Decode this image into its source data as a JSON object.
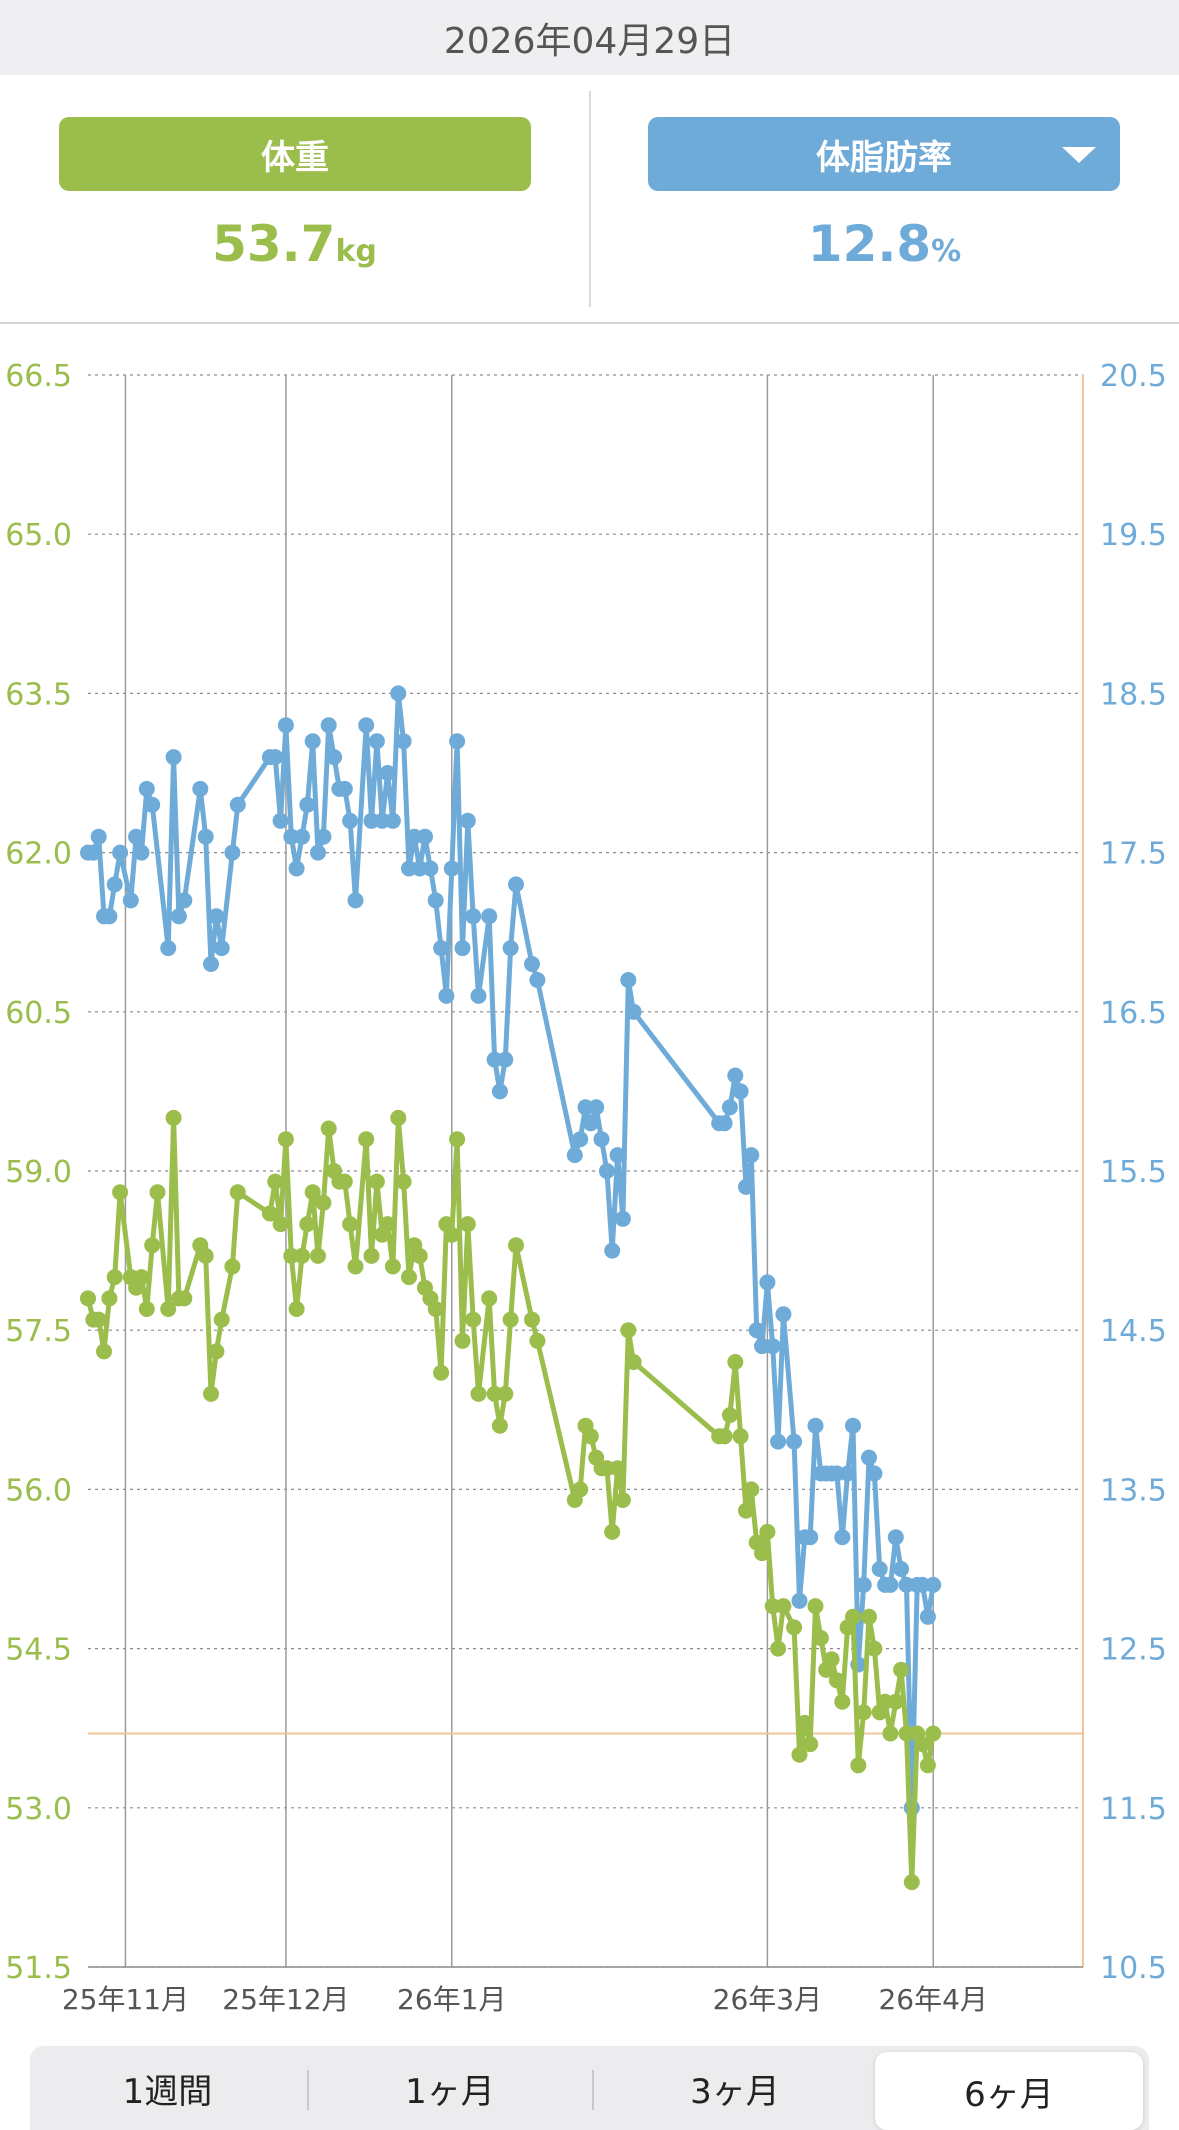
{
  "header": {
    "date": "2026年04月29日"
  },
  "summary": {
    "weight": {
      "label": "体重",
      "value": "53.7",
      "unit": "kg",
      "color": "#9bbd4c"
    },
    "body_fat": {
      "label": "体脂肪率",
      "value": "12.8",
      "unit": "%",
      "color": "#6fabd8",
      "icon": "dropdown-triangle-icon"
    }
  },
  "range_tabs": [
    {
      "label": "1週間"
    },
    {
      "label": "1ヶ月"
    },
    {
      "label": "3ヶ月"
    },
    {
      "label": "6ヶ月",
      "active": true
    }
  ],
  "chart_data": {
    "type": "line",
    "title": "",
    "x_range": [
      "2025-10-25",
      "2026-04-29"
    ],
    "x_tick_labels": [
      {
        "date": "2025-11-01",
        "label": "25年11月"
      },
      {
        "date": "2025-12-01",
        "label": "25年12月"
      },
      {
        "date": "2026-01-01",
        "label": "26年1月"
      },
      {
        "date": "2026-03-01",
        "label": "26年3月"
      },
      {
        "date": "2026-04-01",
        "label": "26年4月"
      }
    ],
    "y_left": {
      "range": [
        51.5,
        66.5
      ],
      "ticks": [
        "51.5",
        "53.0",
        "54.5",
        "56.0",
        "57.5",
        "59.0",
        "60.5",
        "62.0",
        "63.5",
        "65.0",
        "66.5"
      ],
      "color": "#9bbd4c"
    },
    "y_right": {
      "range": [
        10.5,
        20.5
      ],
      "ticks": [
        "10.5",
        "11.5",
        "12.5",
        "13.5",
        "14.5",
        "15.5",
        "16.5",
        "17.5",
        "18.5",
        "19.5",
        "20.5"
      ],
      "color": "#6fabd8"
    },
    "grid": true,
    "reference_line_weight": 53.7,
    "series": [
      {
        "axis": "left",
        "color": "#9bbd4c",
        "points": [
          [
            "2025-10-25",
            57.8
          ],
          [
            "2025-10-26",
            57.6
          ],
          [
            "2025-10-27",
            57.6
          ],
          [
            "2025-10-28",
            57.3
          ],
          [
            "2025-10-29",
            57.8
          ],
          [
            "2025-10-30",
            58.0
          ],
          [
            "2025-10-31",
            58.8
          ],
          [
            "2025-11-02",
            58.0
          ],
          [
            "2025-11-03",
            57.9
          ],
          [
            "2025-11-04",
            58.0
          ],
          [
            "2025-11-05",
            57.7
          ],
          [
            "2025-11-06",
            58.3
          ],
          [
            "2025-11-07",
            58.8
          ],
          [
            "2025-11-09",
            57.7
          ],
          [
            "2025-11-10",
            59.5
          ],
          [
            "2025-11-11",
            57.8
          ],
          [
            "2025-11-12",
            57.8
          ],
          [
            "2025-11-15",
            58.3
          ],
          [
            "2025-11-16",
            58.2
          ],
          [
            "2025-11-17",
            56.9
          ],
          [
            "2025-11-18",
            57.3
          ],
          [
            "2025-11-19",
            57.6
          ],
          [
            "2025-11-21",
            58.1
          ],
          [
            "2025-11-22",
            58.8
          ],
          [
            "2025-11-28",
            58.6
          ],
          [
            "2025-11-29",
            58.9
          ],
          [
            "2025-11-30",
            58.5
          ],
          [
            "2025-12-01",
            59.3
          ],
          [
            "2025-12-02",
            58.2
          ],
          [
            "2025-12-03",
            57.7
          ],
          [
            "2025-12-04",
            58.2
          ],
          [
            "2025-12-05",
            58.5
          ],
          [
            "2025-12-06",
            58.8
          ],
          [
            "2025-12-07",
            58.2
          ],
          [
            "2025-12-08",
            58.7
          ],
          [
            "2025-12-09",
            59.4
          ],
          [
            "2025-12-10",
            59.0
          ],
          [
            "2025-12-11",
            58.9
          ],
          [
            "2025-12-12",
            58.9
          ],
          [
            "2025-12-13",
            58.5
          ],
          [
            "2025-12-14",
            58.1
          ],
          [
            "2025-12-16",
            59.3
          ],
          [
            "2025-12-17",
            58.2
          ],
          [
            "2025-12-18",
            58.9
          ],
          [
            "2025-12-19",
            58.4
          ],
          [
            "2025-12-20",
            58.5
          ],
          [
            "2025-12-21",
            58.1
          ],
          [
            "2025-12-22",
            59.5
          ],
          [
            "2025-12-23",
            58.9
          ],
          [
            "2025-12-24",
            58.0
          ],
          [
            "2025-12-25",
            58.3
          ],
          [
            "2025-12-26",
            58.2
          ],
          [
            "2025-12-27",
            57.9
          ],
          [
            "2025-12-28",
            57.8
          ],
          [
            "2025-12-29",
            57.7
          ],
          [
            "2025-12-30",
            57.1
          ],
          [
            "2025-12-31",
            58.5
          ],
          [
            "2026-01-01",
            58.4
          ],
          [
            "2026-01-02",
            59.3
          ],
          [
            "2026-01-03",
            57.4
          ],
          [
            "2026-01-04",
            58.5
          ],
          [
            "2026-01-05",
            57.6
          ],
          [
            "2026-01-06",
            56.9
          ],
          [
            "2026-01-08",
            57.8
          ],
          [
            "2026-01-09",
            56.9
          ],
          [
            "2026-01-10",
            56.6
          ],
          [
            "2026-01-11",
            56.9
          ],
          [
            "2026-01-12",
            57.6
          ],
          [
            "2026-01-13",
            58.3
          ],
          [
            "2026-01-16",
            57.6
          ],
          [
            "2026-01-17",
            57.4
          ],
          [
            "2026-01-24",
            55.9
          ],
          [
            "2026-01-25",
            56.0
          ],
          [
            "2026-01-26",
            56.6
          ],
          [
            "2026-01-27",
            56.5
          ],
          [
            "2026-01-28",
            56.3
          ],
          [
            "2026-01-29",
            56.2
          ],
          [
            "2026-01-30",
            56.2
          ],
          [
            "2026-01-31",
            55.6
          ],
          [
            "2026-02-01",
            56.2
          ],
          [
            "2026-02-02",
            55.9
          ],
          [
            "2026-02-03",
            57.5
          ],
          [
            "2026-02-04",
            57.2
          ],
          [
            "2026-02-20",
            56.5
          ],
          [
            "2026-02-21",
            56.5
          ],
          [
            "2026-02-22",
            56.7
          ],
          [
            "2026-02-23",
            57.2
          ],
          [
            "2026-02-24",
            56.5
          ],
          [
            "2026-02-25",
            55.8
          ],
          [
            "2026-02-26",
            56.0
          ],
          [
            "2026-02-27",
            55.5
          ],
          [
            "2026-02-28",
            55.4
          ],
          [
            "2026-03-01",
            55.6
          ],
          [
            "2026-03-02",
            54.9
          ],
          [
            "2026-03-03",
            54.5
          ],
          [
            "2026-03-04",
            54.9
          ],
          [
            "2026-03-06",
            54.7
          ],
          [
            "2026-03-07",
            53.5
          ],
          [
            "2026-03-08",
            53.8
          ],
          [
            "2026-03-09",
            53.6
          ],
          [
            "2026-03-10",
            54.9
          ],
          [
            "2026-03-11",
            54.6
          ],
          [
            "2026-03-12",
            54.3
          ],
          [
            "2026-03-13",
            54.4
          ],
          [
            "2026-03-14",
            54.2
          ],
          [
            "2026-03-15",
            54.0
          ],
          [
            "2026-03-16",
            54.7
          ],
          [
            "2026-03-17",
            54.8
          ],
          [
            "2026-03-18",
            53.4
          ],
          [
            "2026-03-19",
            53.9
          ],
          [
            "2026-03-20",
            54.8
          ],
          [
            "2026-03-21",
            54.5
          ],
          [
            "2026-03-22",
            53.9
          ],
          [
            "2026-03-23",
            54.0
          ],
          [
            "2026-03-24",
            53.7
          ],
          [
            "2026-03-25",
            54.0
          ],
          [
            "2026-03-26",
            54.3
          ],
          [
            "2026-03-27",
            53.7
          ],
          [
            "2026-03-28",
            52.3
          ],
          [
            "2026-03-29",
            53.7
          ],
          [
            "2026-03-30",
            53.6
          ],
          [
            "2026-03-31",
            53.4
          ],
          [
            "2026-04-01",
            53.7
          ]
        ]
      },
      {
        "axis": "right",
        "color": "#6fabd8",
        "points": [
          [
            "2025-10-25",
            17.5
          ],
          [
            "2025-10-26",
            17.5
          ],
          [
            "2025-10-27",
            17.6
          ],
          [
            "2025-10-28",
            17.1
          ],
          [
            "2025-10-29",
            17.1
          ],
          [
            "2025-10-30",
            17.3
          ],
          [
            "2025-10-31",
            17.5
          ],
          [
            "2025-11-02",
            17.2
          ],
          [
            "2025-11-03",
            17.6
          ],
          [
            "2025-11-04",
            17.5
          ],
          [
            "2025-11-05",
            17.9
          ],
          [
            "2025-11-06",
            17.8
          ],
          [
            "2025-11-09",
            16.9
          ],
          [
            "2025-11-10",
            18.1
          ],
          [
            "2025-11-11",
            17.1
          ],
          [
            "2025-11-12",
            17.2
          ],
          [
            "2025-11-15",
            17.9
          ],
          [
            "2025-11-16",
            17.6
          ],
          [
            "2025-11-17",
            16.8
          ],
          [
            "2025-11-18",
            17.1
          ],
          [
            "2025-11-19",
            16.9
          ],
          [
            "2025-11-21",
            17.5
          ],
          [
            "2025-11-22",
            17.8
          ],
          [
            "2025-11-28",
            18.1
          ],
          [
            "2025-11-29",
            18.1
          ],
          [
            "2025-11-30",
            17.7
          ],
          [
            "2025-12-01",
            18.3
          ],
          [
            "2025-12-02",
            17.6
          ],
          [
            "2025-12-03",
            17.4
          ],
          [
            "2025-12-04",
            17.6
          ],
          [
            "2025-12-05",
            17.8
          ],
          [
            "2025-12-06",
            18.2
          ],
          [
            "2025-12-07",
            17.5
          ],
          [
            "2025-12-08",
            17.6
          ],
          [
            "2025-12-09",
            18.3
          ],
          [
            "2025-12-10",
            18.1
          ],
          [
            "2025-12-11",
            17.9
          ],
          [
            "2025-12-12",
            17.9
          ],
          [
            "2025-12-13",
            17.7
          ],
          [
            "2025-12-14",
            17.2
          ],
          [
            "2025-12-16",
            18.3
          ],
          [
            "2025-12-17",
            17.7
          ],
          [
            "2025-12-18",
            18.2
          ],
          [
            "2025-12-19",
            17.7
          ],
          [
            "2025-12-20",
            18.0
          ],
          [
            "2025-12-21",
            17.7
          ],
          [
            "2025-12-22",
            18.5
          ],
          [
            "2025-12-23",
            18.2
          ],
          [
            "2025-12-24",
            17.4
          ],
          [
            "2025-12-25",
            17.6
          ],
          [
            "2025-12-26",
            17.4
          ],
          [
            "2025-12-27",
            17.6
          ],
          [
            "2025-12-28",
            17.4
          ],
          [
            "2025-12-29",
            17.2
          ],
          [
            "2025-12-30",
            16.9
          ],
          [
            "2025-12-31",
            16.6
          ],
          [
            "2026-01-01",
            17.4
          ],
          [
            "2026-01-02",
            18.2
          ],
          [
            "2026-01-03",
            16.9
          ],
          [
            "2026-01-04",
            17.7
          ],
          [
            "2026-01-05",
            17.1
          ],
          [
            "2026-01-06",
            16.6
          ],
          [
            "2026-01-08",
            17.1
          ],
          [
            "2026-01-09",
            16.2
          ],
          [
            "2026-01-10",
            16.0
          ],
          [
            "2026-01-11",
            16.2
          ],
          [
            "2026-01-12",
            16.9
          ],
          [
            "2026-01-13",
            17.3
          ],
          [
            "2026-01-16",
            16.8
          ],
          [
            "2026-01-17",
            16.7
          ],
          [
            "2026-01-24",
            15.6
          ],
          [
            "2026-01-25",
            15.7
          ],
          [
            "2026-01-26",
            15.9
          ],
          [
            "2026-01-27",
            15.8
          ],
          [
            "2026-01-28",
            15.9
          ],
          [
            "2026-01-29",
            15.7
          ],
          [
            "2026-01-30",
            15.5
          ],
          [
            "2026-01-31",
            15.0
          ],
          [
            "2026-02-01",
            15.6
          ],
          [
            "2026-02-02",
            15.2
          ],
          [
            "2026-02-03",
            16.7
          ],
          [
            "2026-02-04",
            16.5
          ],
          [
            "2026-02-20",
            15.8
          ],
          [
            "2026-02-21",
            15.8
          ],
          [
            "2026-02-22",
            15.9
          ],
          [
            "2026-02-23",
            16.1
          ],
          [
            "2026-02-24",
            16.0
          ],
          [
            "2026-02-25",
            15.4
          ],
          [
            "2026-02-26",
            15.6
          ],
          [
            "2026-02-27",
            14.5
          ],
          [
            "2026-02-28",
            14.4
          ],
          [
            "2026-03-01",
            14.8
          ],
          [
            "2026-03-02",
            14.4
          ],
          [
            "2026-03-03",
            13.8
          ],
          [
            "2026-03-04",
            14.6
          ],
          [
            "2026-03-06",
            13.8
          ],
          [
            "2026-03-07",
            12.8
          ],
          [
            "2026-03-08",
            13.2
          ],
          [
            "2026-03-09",
            13.2
          ],
          [
            "2026-03-10",
            13.9
          ],
          [
            "2026-03-11",
            13.6
          ],
          [
            "2026-03-12",
            13.6
          ],
          [
            "2026-03-13",
            13.6
          ],
          [
            "2026-03-14",
            13.6
          ],
          [
            "2026-03-15",
            13.2
          ],
          [
            "2026-03-16",
            13.6
          ],
          [
            "2026-03-17",
            13.9
          ],
          [
            "2026-03-18",
            12.4
          ],
          [
            "2026-03-19",
            12.9
          ],
          [
            "2026-03-20",
            13.7
          ],
          [
            "2026-03-21",
            13.6
          ],
          [
            "2026-03-22",
            13.0
          ],
          [
            "2026-03-23",
            12.9
          ],
          [
            "2026-03-24",
            12.9
          ],
          [
            "2026-03-25",
            13.2
          ],
          [
            "2026-03-26",
            13.0
          ],
          [
            "2026-03-27",
            12.9
          ],
          [
            "2026-03-28",
            11.5
          ],
          [
            "2026-03-29",
            12.9
          ],
          [
            "2026-03-30",
            12.9
          ],
          [
            "2026-03-31",
            12.7
          ],
          [
            "2026-04-01",
            12.9
          ]
        ]
      }
    ]
  }
}
